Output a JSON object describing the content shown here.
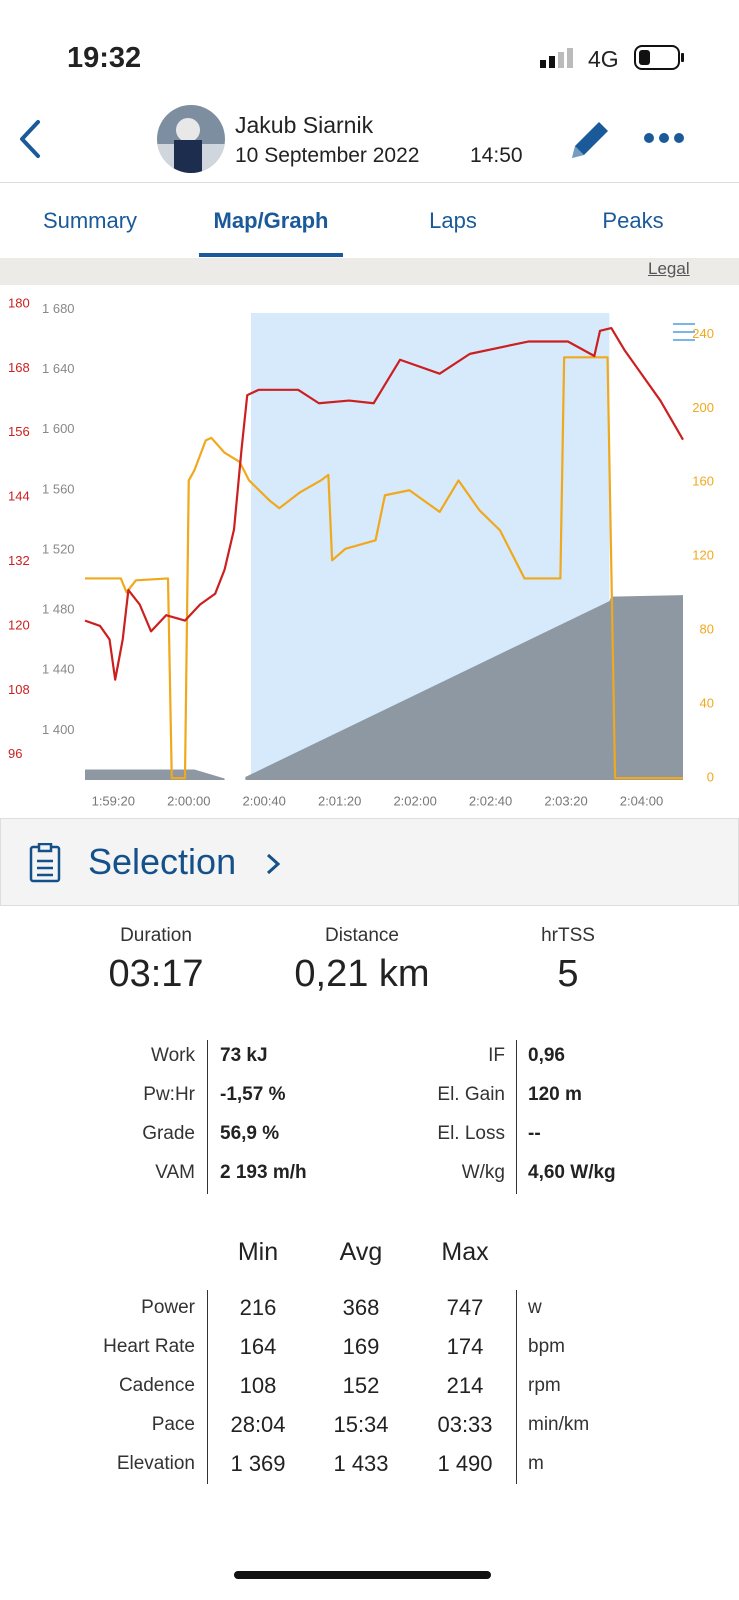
{
  "status": {
    "time": "19:32",
    "network": "4G"
  },
  "header": {
    "name": "Jakub Siarnik",
    "date": "10 September 2022",
    "time": "14:50"
  },
  "tabs": [
    "Summary",
    "Map/Graph",
    "Laps",
    "Peaks"
  ],
  "active_tab": 1,
  "map": {
    "legal": "Legal"
  },
  "chart": {
    "type": "line",
    "xlim": [
      7145,
      7462
    ],
    "xticks": [
      {
        "value": 7160,
        "label": "1:59:20"
      },
      {
        "value": 7200,
        "label": "2:00:00"
      },
      {
        "value": 7240,
        "label": "2:00:40"
      },
      {
        "value": 7280,
        "label": "2:01:20"
      },
      {
        "value": 7320,
        "label": "2:02:00"
      },
      {
        "value": 7360,
        "label": "2:02:40"
      },
      {
        "value": 7400,
        "label": "2:03:20"
      },
      {
        "value": 7440,
        "label": "2:04:00"
      }
    ],
    "selection": [
      7233,
      7423
    ],
    "selection_color": "#d6eafb",
    "ylim": [
      91.3,
      182.6
    ],
    "yticks": [
      96,
      108,
      120,
      132,
      144,
      156,
      168,
      180
    ],
    "ycolor": "#cc1f1f",
    "elevation_lim": [
      1367,
      1693
    ],
    "elevation_ticks": [
      {
        "value": 1400,
        "label": "1 400"
      },
      {
        "value": 1440,
        "label": "1 440"
      },
      {
        "value": 1480,
        "label": "1 480"
      },
      {
        "value": 1520,
        "label": "1 520"
      },
      {
        "value": 1560,
        "label": "1 560"
      },
      {
        "value": 1600,
        "label": "1 600"
      },
      {
        "value": 1640,
        "label": "1 640"
      },
      {
        "value": 1680,
        "label": "1 680"
      }
    ],
    "elevation_color": "#888888",
    "y2lim": [
      -1,
      264
    ],
    "y2ticks": [
      0,
      40,
      80,
      120,
      160,
      200,
      240
    ],
    "y2color": "#f0a81c",
    "series": [
      {
        "type": "area",
        "axis": "elevation",
        "color": "#8d98a3",
        "x": [
          7145,
          7203,
          7219,
          7225,
          7230,
          7423,
          7424,
          7462
        ],
        "values": [
          1374,
          1374,
          1368,
          null,
          1369,
          1486,
          1489,
          1490
        ]
      },
      {
        "type": "line",
        "axis": "y2",
        "color": "#f0a81c",
        "x": [
          7145,
          7164,
          7167,
          7172,
          7189,
          7191,
          7198,
          7200,
          7203,
          7209,
          7212,
          7219,
          7227,
          7232,
          7243,
          7248,
          7259,
          7270,
          7274,
          7276,
          7283,
          7299,
          7304,
          7317,
          7333,
          7343,
          7354,
          7365,
          7378,
          7397,
          7399,
          7422,
          7426,
          7462
        ],
        "values": [
          108,
          108,
          100.5,
          107,
          108,
          0,
          0,
          161,
          166.5,
          182.7,
          184,
          176,
          171,
          161,
          150,
          146,
          154.6,
          161,
          164,
          117.8,
          124,
          128.6,
          153,
          155.7,
          144,
          161,
          145,
          134,
          108,
          108,
          227.6,
          227.6,
          0,
          0
        ]
      },
      {
        "type": "line",
        "axis": "y",
        "color": "#cc1f1f",
        "x": [
          7145,
          7153,
          7158,
          7161,
          7165,
          7168,
          7174,
          7180,
          7188,
          7198,
          7206,
          7214,
          7219,
          7224,
          7228,
          7231,
          7237,
          7258,
          7269,
          7285,
          7298,
          7312,
          7333,
          7349,
          7380,
          7401,
          7415,
          7418,
          7424,
          7431,
          7450,
          7462
        ],
        "values": [
          121,
          120,
          117.5,
          110,
          117.5,
          126.7,
          124,
          119,
          122,
          121,
          124,
          126,
          130.5,
          138,
          153,
          163,
          164,
          164,
          161.5,
          162,
          161.5,
          169.6,
          167,
          170.7,
          173,
          173,
          170.3,
          175,
          175.5,
          171.4,
          162,
          154.7
        ]
      }
    ]
  },
  "selection": {
    "title": "Selection"
  },
  "summary": [
    {
      "label": "Duration",
      "value": "03:17"
    },
    {
      "label": "Distance",
      "value": "0,21 km"
    },
    {
      "label": "hrTSS",
      "value": "5"
    }
  ],
  "details": [
    {
      "label": "Work",
      "value": "73 kJ",
      "label2": "IF",
      "value2": "0,96"
    },
    {
      "label": "Pw:Hr",
      "value": "-1,57 %",
      "label2": "El. Gain",
      "value2": "120 m"
    },
    {
      "label": "Grade",
      "value": "56,9 %",
      "label2": "El. Loss",
      "value2": "--"
    },
    {
      "label": "VAM",
      "value": "2 193 m/h",
      "label2": "W/kg",
      "value2": "4,60 W/kg"
    }
  ],
  "stats": {
    "headers": [
      "Min",
      "Avg",
      "Max"
    ],
    "rows": [
      {
        "label": "Power",
        "min": "216",
        "avg": "368",
        "max": "747",
        "unit": "w"
      },
      {
        "label": "Heart Rate",
        "min": "164",
        "avg": "169",
        "max": "174",
        "unit": "bpm"
      },
      {
        "label": "Cadence",
        "min": "108",
        "avg": "152",
        "max": "214",
        "unit": "rpm"
      },
      {
        "label": "Pace",
        "min": "28:04",
        "avg": "15:34",
        "max": "03:33",
        "unit": "min/km"
      },
      {
        "label": "Elevation",
        "min": "1 369",
        "avg": "1 433",
        "max": "1 490",
        "unit": "m"
      }
    ]
  }
}
